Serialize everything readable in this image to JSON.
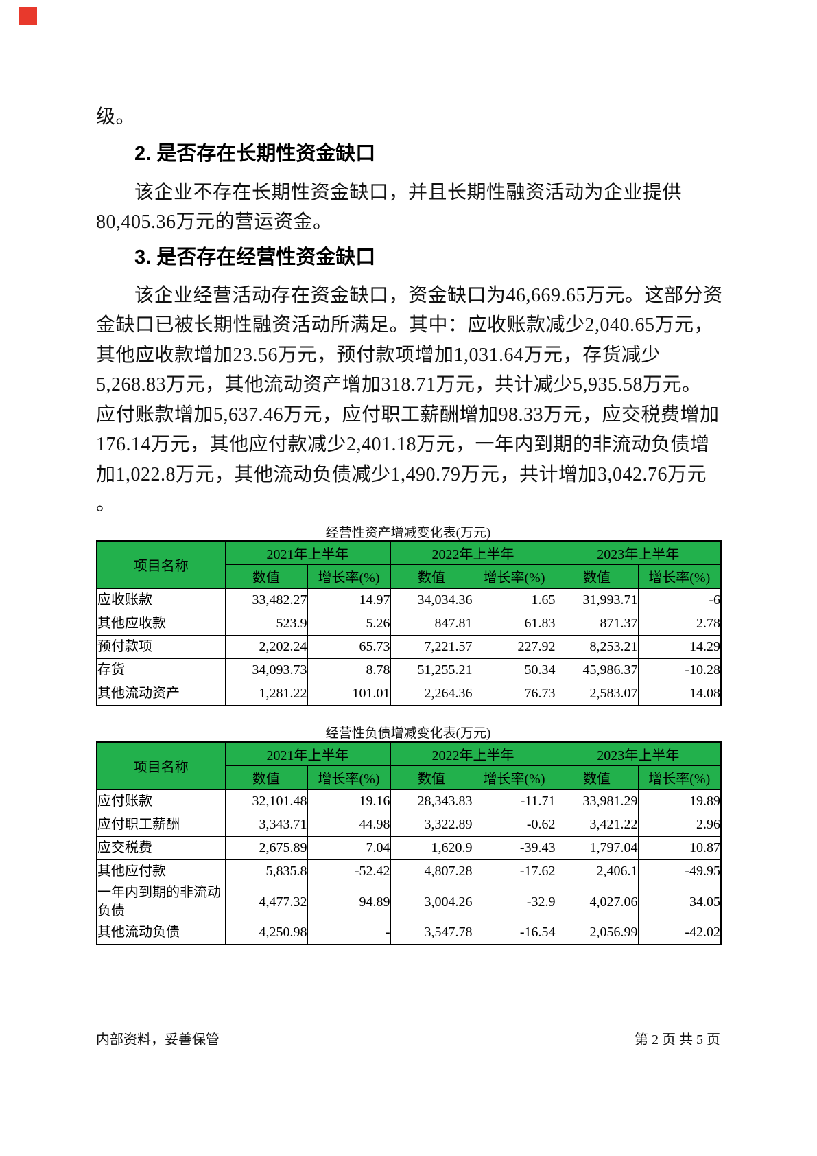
{
  "colors": {
    "table_header_green": "#22b14c",
    "marker_red": "#e8392c",
    "text": "#000000"
  },
  "body": {
    "leading_line": "级。",
    "sections": [
      {
        "heading": "2. 是否存在长期性资金缺口",
        "lines": [
          "该企业不存在长期性资金缺口，并且长期性融资活动为企业提供",
          "80,405.36万元的营运资金。"
        ]
      },
      {
        "heading": "3. 是否存在经营性资金缺口",
        "lines": [
          "该企业经营活动存在资金缺口，资金缺口为46,669.65万元。这部分资",
          "金缺口已被长期性融资活动所满足。其中：应收账款减少2,040.65万元，",
          "其他应收款增加23.56万元，预付款项增加1,031.64万元，存货减少",
          "5,268.83万元，其他流动资产增加318.71万元，共计减少5,935.58万元。",
          "应付账款增加5,637.46万元，应付职工薪酬增加98.33万元，应交税费增加",
          "176.14万元，其他应付款减少2,401.18万元，一年内到期的非流动负债增",
          "加1,022.8万元，其他流动负债减少1,490.79万元，共计增加3,042.76万元",
          "。"
        ]
      }
    ]
  },
  "tables": [
    {
      "title": "经营性资产增减变化表(万元)",
      "item_header": "项目名称",
      "year_headers": [
        "2021年上半年",
        "2022年上半年",
        "2023年上半年"
      ],
      "sub_headers": [
        "数值",
        "增长率(%)"
      ],
      "rows": [
        {
          "name": "应收账款",
          "values": [
            "33,482.27",
            "14.97",
            "34,034.36",
            "1.65",
            "31,993.71",
            "-6"
          ]
        },
        {
          "name": "其他应收款",
          "values": [
            "523.9",
            "5.26",
            "847.81",
            "61.83",
            "871.37",
            "2.78"
          ]
        },
        {
          "name": "预付款项",
          "values": [
            "2,202.24",
            "65.73",
            "7,221.57",
            "227.92",
            "8,253.21",
            "14.29"
          ]
        },
        {
          "name": "存货",
          "values": [
            "34,093.73",
            "8.78",
            "51,255.21",
            "50.34",
            "45,986.37",
            "-10.28"
          ]
        },
        {
          "name": "其他流动资产",
          "values": [
            "1,281.22",
            "101.01",
            "2,264.36",
            "76.73",
            "2,583.07",
            "14.08"
          ]
        }
      ]
    },
    {
      "title": "经营性负债增减变化表(万元)",
      "item_header": "项目名称",
      "year_headers": [
        "2021年上半年",
        "2022年上半年",
        "2023年上半年"
      ],
      "sub_headers": [
        "数值",
        "增长率(%)"
      ],
      "rows": [
        {
          "name": "应付账款",
          "values": [
            "32,101.48",
            "19.16",
            "28,343.83",
            "-11.71",
            "33,981.29",
            "19.89"
          ]
        },
        {
          "name": "应付职工薪酬",
          "values": [
            "3,343.71",
            "44.98",
            "3,322.89",
            "-0.62",
            "3,421.22",
            "2.96"
          ]
        },
        {
          "name": "应交税费",
          "values": [
            "2,675.89",
            "7.04",
            "1,620.9",
            "-39.43",
            "1,797.04",
            "10.87"
          ]
        },
        {
          "name": "其他应付款",
          "values": [
            "5,835.8",
            "-52.42",
            "4,807.28",
            "-17.62",
            "2,406.1",
            "-49.95"
          ]
        },
        {
          "name": "一年内到期的非流动负债",
          "values": [
            "4,477.32",
            "94.89",
            "3,004.26",
            "-32.9",
            "4,027.06",
            "34.05"
          ]
        },
        {
          "name": "其他流动负债",
          "values": [
            "4,250.98",
            "-",
            "3,547.78",
            "-16.54",
            "2,056.99",
            "-42.02"
          ]
        }
      ]
    }
  ],
  "footer": {
    "left": "内部资料，妥善保管",
    "right": "第 2 页  共 5 页"
  }
}
